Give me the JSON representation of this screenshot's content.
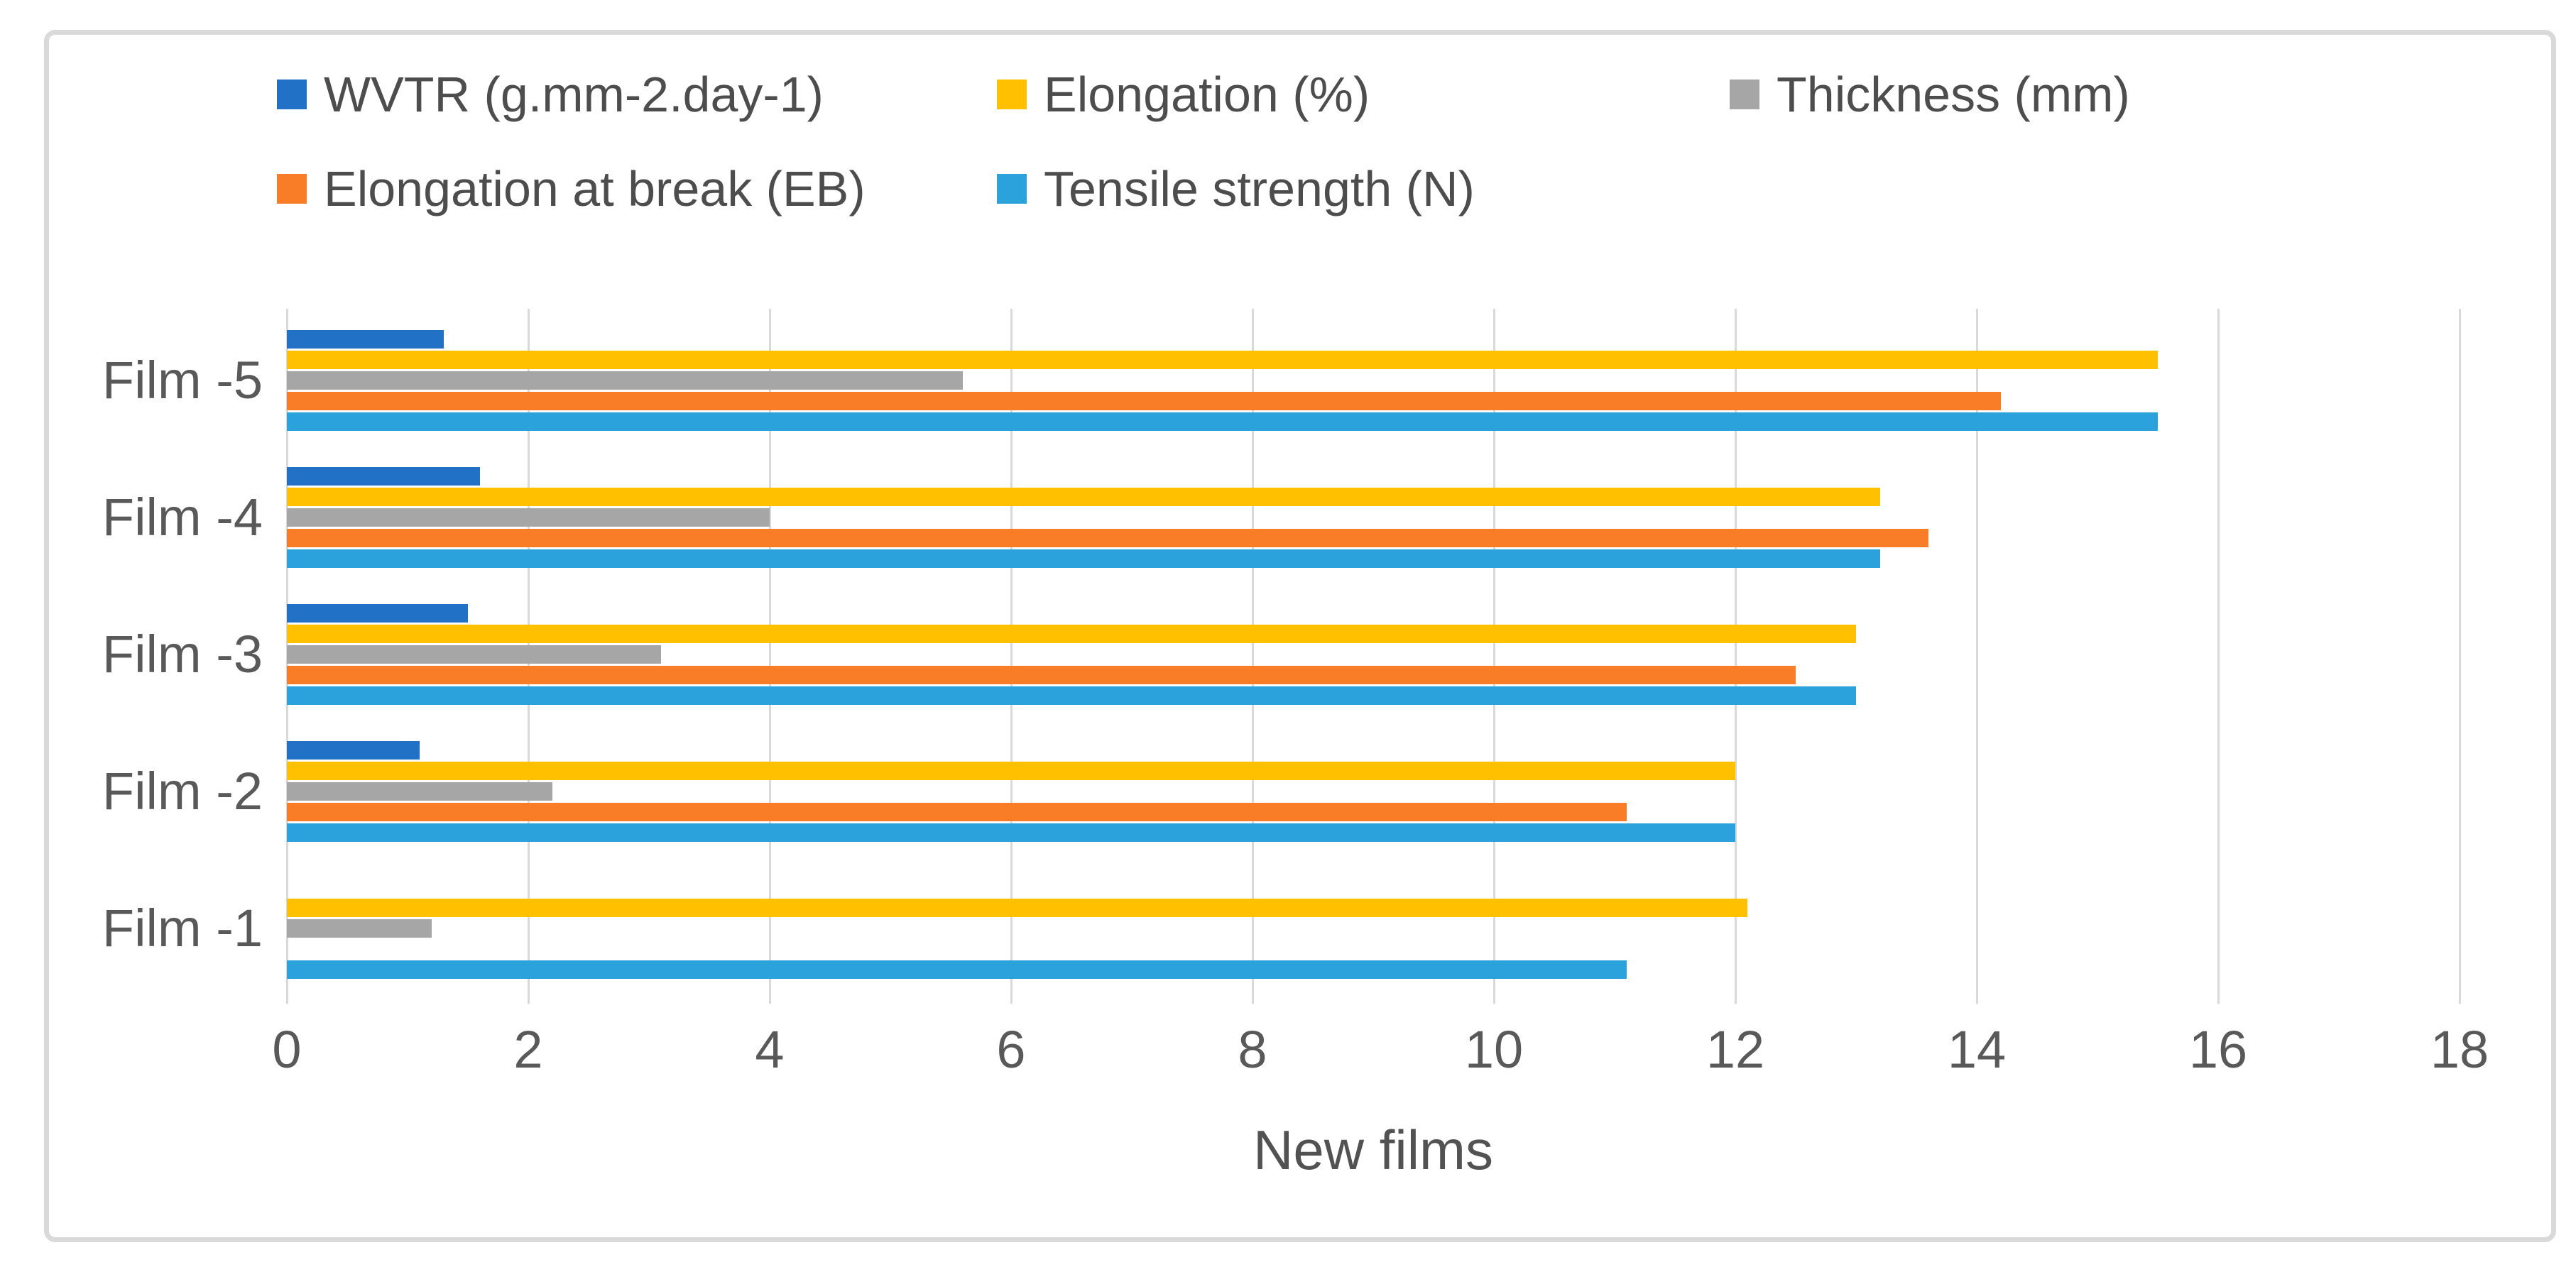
{
  "chart_data": {
    "type": "bar",
    "orientation": "horizontal",
    "title": "",
    "xlabel": "New films",
    "ylabel": "",
    "xlim": [
      0,
      18
    ],
    "x_ticks": [
      0,
      2,
      4,
      6,
      8,
      10,
      12,
      14,
      16,
      18
    ],
    "grid": true,
    "legend_position": "top-two-rows",
    "category_order": "top-to-bottom",
    "categories": [
      "Film -5",
      "Film -4",
      "Film -3",
      "Film -2",
      "Film -1"
    ],
    "series": [
      {
        "name": "WVTR (g.mm-2.day-1)",
        "color": "#2171C7",
        "values": [
          1.3,
          1.6,
          1.5,
          1.1,
          0
        ]
      },
      {
        "name": "Elongation (%)",
        "color": "#FFC000",
        "values": [
          15.5,
          13.2,
          13.0,
          12.0,
          12.1
        ]
      },
      {
        "name": "Thickness (mm)",
        "color": "#A6A6A6",
        "values": [
          5.6,
          4.0,
          3.1,
          2.2,
          1.2
        ]
      },
      {
        "name": "Elongation at break (EB)",
        "color": "#F87D26",
        "values": [
          14.2,
          13.6,
          12.5,
          11.1,
          0
        ]
      },
      {
        "name": "Tensile strength (N)",
        "color": "#2CA2DC",
        "values": [
          15.5,
          13.2,
          13.0,
          12.0,
          11.1
        ]
      }
    ],
    "style": {
      "gridline_color": "#D9D9D9",
      "frame_border_color": "#D9D9D9",
      "tick_text_color": "#595959",
      "legend_text_color": "#4d4d4d",
      "axis_title_color": "#525252",
      "background": "#ffffff"
    }
  }
}
